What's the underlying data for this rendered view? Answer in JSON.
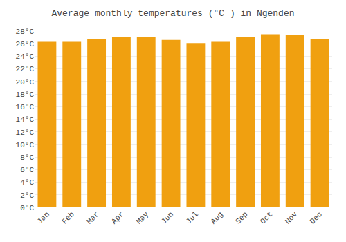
{
  "chart_data": {
    "type": "bar",
    "title": "Average monthly temperatures (°C ) in Ngenden",
    "categories": [
      "Jan",
      "Feb",
      "Mar",
      "Apr",
      "May",
      "Jun",
      "Jul",
      "Aug",
      "Sep",
      "Oct",
      "Nov",
      "Dec"
    ],
    "values": [
      26.3,
      26.3,
      26.8,
      27.1,
      27.1,
      26.6,
      26.1,
      26.3,
      27.0,
      27.5,
      27.4,
      26.8
    ],
    "color": "#F0A010",
    "ylim": [
      0,
      28
    ],
    "yticks": [
      {
        "value": 0,
        "label": "0°C"
      },
      {
        "value": 2,
        "label": "2°C"
      },
      {
        "value": 4,
        "label": "4°C"
      },
      {
        "value": 6,
        "label": "6°C"
      },
      {
        "value": 8,
        "label": "8°C"
      },
      {
        "value": 10,
        "label": "10°C"
      },
      {
        "value": 12,
        "label": "12°C"
      },
      {
        "value": 14,
        "label": "14°C"
      },
      {
        "value": 16,
        "label": "16°C"
      },
      {
        "value": 18,
        "label": "18°C"
      },
      {
        "value": 20,
        "label": "20°C"
      },
      {
        "value": 22,
        "label": "22°C"
      },
      {
        "value": 24,
        "label": "24°C"
      },
      {
        "value": 26,
        "label": "26°C"
      },
      {
        "value": 28,
        "label": "28°C"
      }
    ],
    "grid": true
  }
}
